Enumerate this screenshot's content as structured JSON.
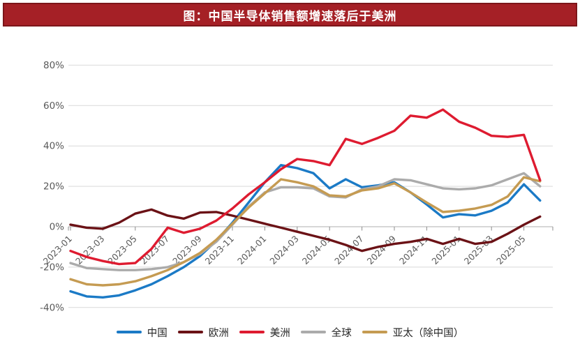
{
  "header": {
    "title": "图：中国半导体销售额增速落后于美洲",
    "bg_color": "#a52026",
    "border_color": "#7d161a",
    "text_color": "#ffffff"
  },
  "axis_style": {
    "label_color": "#595959",
    "grid_color": "#d9d9d9",
    "zero_axis_color": "#bfbfbf",
    "tick_color": "#8c8c8c"
  },
  "chart_data": {
    "type": "line",
    "title": "图：中国半导体销售额增速落后于美洲",
    "xlabel": "",
    "ylabel": "",
    "ylabel_format": "percent",
    "ylim": [
      -40,
      80
    ],
    "yticks": [
      80,
      60,
      40,
      20,
      0,
      -20,
      -40
    ],
    "ytick_labels": [
      "80%",
      "60%",
      "40%",
      "20%",
      "0%",
      "-20%",
      "-40%"
    ],
    "grid": true,
    "legend_position": "bottom",
    "x": [
      "2023-01",
      "2023-02",
      "2023-03",
      "2023-04",
      "2023-05",
      "2023-06",
      "2023-07",
      "2023-08",
      "2023-09",
      "2023-10",
      "2023-11",
      "2023-12",
      "2024-01",
      "2024-02",
      "2024-03",
      "2024-04",
      "2024-05",
      "2024-06",
      "2024-07",
      "2024-08",
      "2024-09",
      "2024-10",
      "2024-11",
      "2024-12",
      "2025-01",
      "2025-02",
      "2025-03",
      "2025-04",
      "2025-05",
      "2025-06"
    ],
    "x_tick_labels_shown": [
      "2023-01",
      "2023-03",
      "2023-05",
      "2023-07",
      "2023-09",
      "2023-11",
      "2024-01",
      "2024-03",
      "2024-05",
      "2024-07",
      "2024-09",
      "2024-11",
      "2025-01",
      "2025-03",
      "2025-05"
    ],
    "series": [
      {
        "name": "中国",
        "color": "#1b7ac6",
        "values": [
          -32,
          -34.5,
          -35,
          -34,
          -31.5,
          -28.5,
          -24.5,
          -20,
          -14.5,
          -7,
          2,
          12,
          22,
          30.5,
          29,
          26.5,
          19,
          23.5,
          19.5,
          20.5,
          22,
          17,
          11,
          4.6,
          6.2,
          5.6,
          7.9,
          12,
          21,
          13
        ]
      },
      {
        "name": "欧洲",
        "color": "#6b1216",
        "values": [
          1,
          -0.5,
          -1,
          2,
          6.5,
          8.5,
          5.5,
          4,
          7,
          7.3,
          5.5,
          3.5,
          1.5,
          -0.5,
          -2.5,
          -4.5,
          -6.5,
          -9,
          -12,
          -10,
          -8.5,
          -7.5,
          -6,
          -8.5,
          -6,
          -8.5,
          -7.5,
          -3.5,
          1,
          5
        ]
      },
      {
        "name": "美洲",
        "color": "#de1b30",
        "values": [
          -12,
          -15,
          -17,
          -18.5,
          -18,
          -11,
          -0.5,
          -3,
          -1,
          3,
          9,
          16,
          22,
          28.5,
          33.5,
          32.5,
          30.5,
          43.5,
          41,
          44,
          47.5,
          55,
          54,
          58,
          52,
          49,
          45,
          44.5,
          45.5,
          23
        ]
      },
      {
        "name": "全球",
        "color": "#ababab",
        "values": [
          -18,
          -20.5,
          -21,
          -21.5,
          -21.5,
          -21,
          -20,
          -17.5,
          -13.5,
          -7.5,
          1,
          10,
          17,
          19.5,
          19.5,
          19,
          15,
          14.5,
          18.5,
          20,
          23.5,
          23,
          21,
          19,
          18.5,
          19,
          20.5,
          23.5,
          26.5,
          20
        ]
      },
      {
        "name": "亚太（除中国）",
        "color": "#c59b52",
        "values": [
          -26,
          -28.5,
          -29,
          -28.5,
          -27,
          -24.5,
          -21.5,
          -17.5,
          -13,
          -6.5,
          1.5,
          9.5,
          16.5,
          23.5,
          22,
          20,
          15.5,
          15,
          18,
          19,
          21.5,
          17,
          12,
          7.3,
          7.9,
          9,
          10.8,
          15,
          24.5,
          22.5
        ]
      }
    ]
  }
}
